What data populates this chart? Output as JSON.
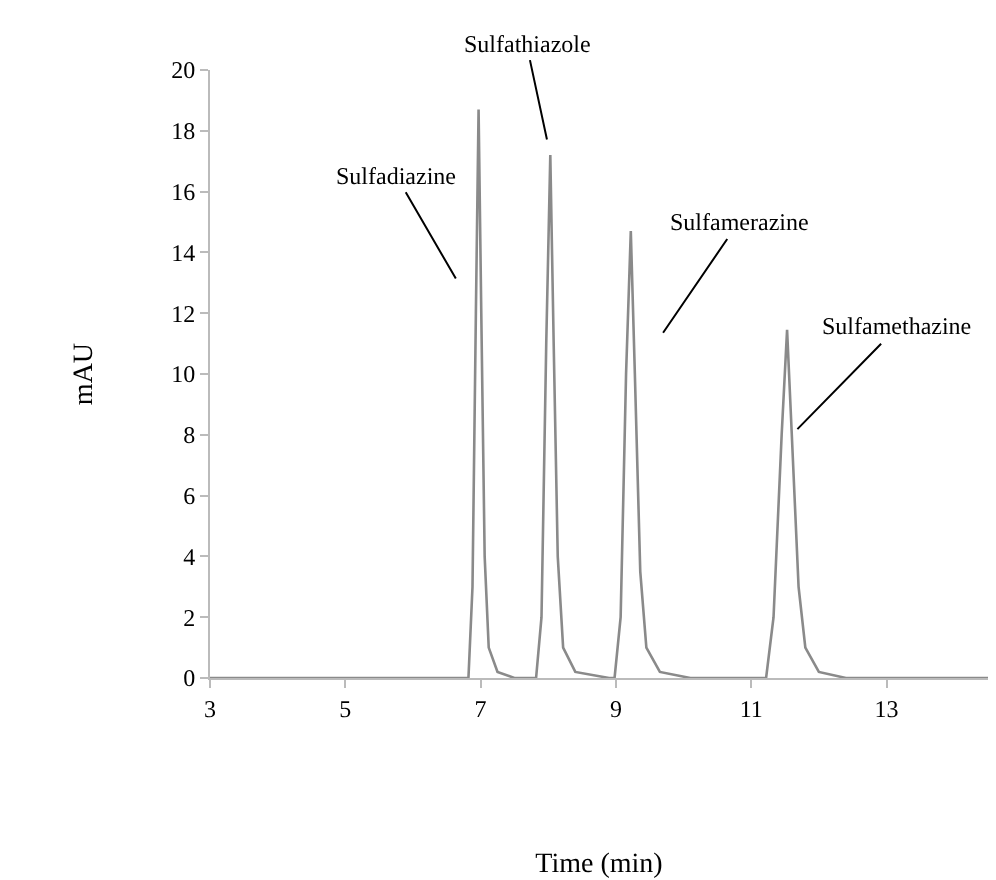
{
  "chart_data": {
    "type": "line",
    "xlabel": "Time (min)",
    "ylabel": "mAU",
    "x": [
      3,
      6.3,
      6.82,
      6.88,
      6.93,
      6.97,
      7.01,
      7.06,
      7.12,
      7.25,
      7.5,
      7.82,
      7.9,
      7.97,
      8.03,
      8.08,
      8.14,
      8.22,
      8.4,
      8.9,
      8.98,
      9.07,
      9.15,
      9.22,
      9.28,
      9.36,
      9.45,
      9.65,
      10.1,
      11.22,
      11.33,
      11.45,
      11.53,
      11.6,
      11.7,
      11.8,
      12.0,
      12.4,
      14.5
    ],
    "series": [
      {
        "color": "#8a8a8a",
        "values": [
          0,
          0,
          0,
          3,
          12,
          18.7,
          12,
          4,
          1,
          0.2,
          0,
          0,
          2,
          11,
          17.2,
          11,
          4,
          1,
          0.2,
          0,
          0,
          2,
          10,
          14.7,
          10,
          3.5,
          1,
          0.2,
          0,
          0,
          2,
          8,
          11.45,
          8,
          3,
          1,
          0.2,
          0,
          0
        ]
      }
    ],
    "xlim": [
      3,
      14.5
    ],
    "xticks": [
      3,
      5,
      7,
      9,
      11,
      13
    ],
    "ylim": [
      0,
      20
    ],
    "yticks": [
      0,
      2,
      4,
      6,
      8,
      10,
      12,
      14,
      16,
      18,
      20
    ],
    "marker": "none",
    "line_style": "solid",
    "annotations": [
      {
        "text": "Sulfadiazine",
        "x": 6.93,
        "y": 12
      },
      {
        "text": "Sulfathiazole",
        "x": 8.03,
        "y": 17.2
      },
      {
        "text": "Sulfamerazine",
        "x": 9.28,
        "y": 10
      },
      {
        "text": "Sulfamethazine",
        "x": 11.6,
        "y": 8
      }
    ]
  }
}
